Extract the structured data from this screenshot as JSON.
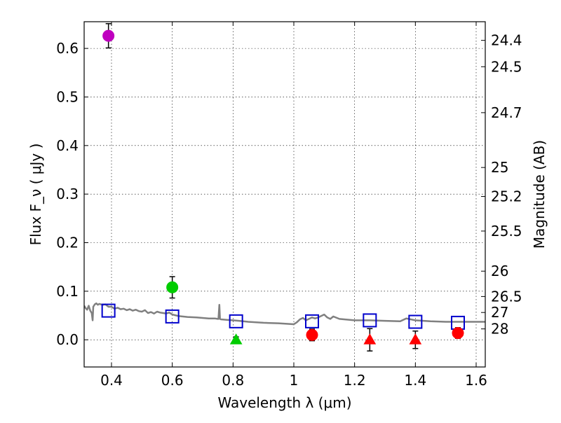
{
  "chart_data": {
    "type": "scatter",
    "title": "",
    "xlabel": "Wavelength  λ (μm)",
    "ylabel": "Flux  F_ν  ( μJy )",
    "ylabel_right": "Magnitude (AB)",
    "xlim": [
      0.31,
      1.63
    ],
    "ylim": [
      -0.056,
      0.655
    ],
    "grid": true,
    "x_ticks": [
      0.4,
      0.6,
      0.8,
      1.0,
      1.2,
      1.4,
      1.6
    ],
    "x_tick_labels": [
      "0.4",
      "0.6",
      "0.8",
      "1",
      "1.2",
      "1.4",
      "1.6"
    ],
    "y_ticks": [
      0.0,
      0.1,
      0.2,
      0.3,
      0.4,
      0.5,
      0.6
    ],
    "y_tick_labels": [
      "0.0",
      "0.1",
      "0.2",
      "0.3",
      "0.4",
      "0.5",
      "0.6"
    ],
    "right_ticks": [
      {
        "label": "24.4",
        "flux": 0.6166
      },
      {
        "label": "24.5",
        "flux": 0.5623
      },
      {
        "label": "24.7",
        "flux": 0.4677
      },
      {
        "label": "25",
        "flux": 0.3548
      },
      {
        "label": "25.2",
        "flux": 0.2951
      },
      {
        "label": "25.5",
        "flux": 0.2239
      },
      {
        "label": "26",
        "flux": 0.1413
      },
      {
        "label": "26.5",
        "flux": 0.0891
      },
      {
        "label": "27",
        "flux": 0.0562
      },
      {
        "label": "28",
        "flux": 0.0224
      }
    ],
    "series": [
      {
        "name": "template_spectrum",
        "kind": "line",
        "color": "#808080",
        "x": [
          0.31,
          0.315,
          0.32,
          0.325,
          0.33,
          0.335,
          0.338,
          0.34,
          0.345,
          0.35,
          0.355,
          0.36,
          0.37,
          0.38,
          0.39,
          0.4,
          0.41,
          0.42,
          0.43,
          0.44,
          0.45,
          0.46,
          0.47,
          0.48,
          0.49,
          0.5,
          0.51,
          0.52,
          0.53,
          0.54,
          0.55,
          0.56,
          0.57,
          0.58,
          0.59,
          0.6,
          0.62,
          0.65,
          0.68,
          0.7,
          0.72,
          0.74,
          0.75,
          0.752,
          0.755,
          0.757,
          0.76,
          0.78,
          0.8,
          0.82,
          0.85,
          0.9,
          0.95,
          1.0,
          1.01,
          1.02,
          1.03,
          1.04,
          1.06,
          1.07,
          1.08,
          1.1,
          1.11,
          1.12,
          1.13,
          1.15,
          1.2,
          1.25,
          1.3,
          1.35,
          1.37,
          1.4,
          1.45,
          1.5,
          1.55,
          1.6,
          1.63
        ],
        "y": [
          0.07,
          0.065,
          0.062,
          0.07,
          0.06,
          0.055,
          0.04,
          0.068,
          0.073,
          0.075,
          0.072,
          0.074,
          0.072,
          0.073,
          0.068,
          0.068,
          0.064,
          0.066,
          0.063,
          0.064,
          0.061,
          0.063,
          0.06,
          0.062,
          0.059,
          0.058,
          0.061,
          0.055,
          0.057,
          0.054,
          0.058,
          0.056,
          0.055,
          0.054,
          0.056,
          0.052,
          0.049,
          0.047,
          0.046,
          0.045,
          0.044,
          0.044,
          0.043,
          0.043,
          0.072,
          0.043,
          0.042,
          0.041,
          0.04,
          0.039,
          0.037,
          0.035,
          0.034,
          0.032,
          0.036,
          0.042,
          0.045,
          0.04,
          0.046,
          0.044,
          0.046,
          0.052,
          0.046,
          0.043,
          0.048,
          0.043,
          0.04,
          0.04,
          0.039,
          0.038,
          0.044,
          0.04,
          0.038,
          0.037,
          0.037,
          0.037,
          0.037
        ]
      },
      {
        "name": "model_photometry",
        "kind": "open-square",
        "color": "#0000cc",
        "x": [
          0.39,
          0.6,
          0.81,
          1.06,
          1.25,
          1.4,
          1.54
        ],
        "y": [
          0.06,
          0.048,
          0.038,
          0.038,
          0.04,
          0.037,
          0.035
        ]
      },
      {
        "name": "detections",
        "kind": "filled-circle",
        "x": [
          0.39,
          0.6,
          1.06,
          1.54
        ],
        "y": [
          0.626,
          0.108,
          0.01,
          0.014
        ],
        "yerr": [
          0.025,
          0.022,
          0.012,
          0.011
        ],
        "colors": [
          "#bf00bf",
          "#00cc00",
          "#ff0000",
          "#ff0000"
        ]
      },
      {
        "name": "upper_limits",
        "kind": "filled-triangle",
        "x": [
          0.81,
          1.25,
          1.4
        ],
        "y": [
          0.0,
          0.0,
          0.0
        ],
        "yerr": [
          0.006,
          0.023,
          0.018
        ],
        "colors": [
          "#00cc00",
          "#ff0000",
          "#ff0000"
        ]
      }
    ]
  }
}
